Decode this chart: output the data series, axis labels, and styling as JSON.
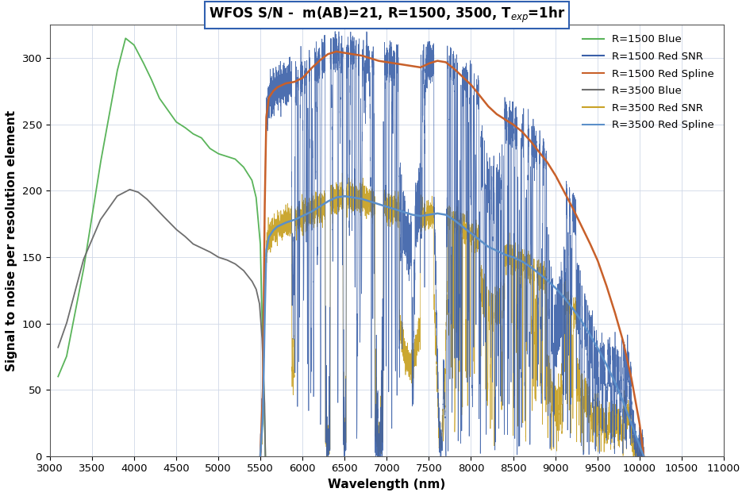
{
  "title": "WFOS S/N -  m(AB)=21, R=1500, 3500, T$_{exp}$=1hr",
  "xlabel": "Wavelength (nm)",
  "ylabel": "Signal to noise per resolution element",
  "xlim": [
    3000,
    11000
  ],
  "ylim": [
    0,
    325
  ],
  "xticks": [
    3000,
    3500,
    4000,
    4500,
    5000,
    5500,
    6000,
    6500,
    7000,
    7500,
    8000,
    8500,
    9000,
    9500,
    10000,
    10500,
    11000
  ],
  "yticks": [
    0,
    50,
    100,
    150,
    200,
    250,
    300
  ],
  "colors": {
    "r1500_blue": "#5ab45a",
    "r1500_red_snr": "#3a5fa8",
    "r1500_red_spline": "#c8602a",
    "r3500_blue": "#6e6e6e",
    "r3500_red_snr": "#c9a227",
    "r3500_red_spline": "#5b8fc9"
  },
  "legend_labels": [
    "R=1500 Blue",
    "R=1500 Red SNR",
    "R=1500 Red Spline",
    "R=3500 Blue",
    "R=3500 Red SNR",
    "R=3500 Red Spline"
  ],
  "title_fontsize": 12,
  "axis_label_fontsize": 11,
  "tick_fontsize": 9.5
}
